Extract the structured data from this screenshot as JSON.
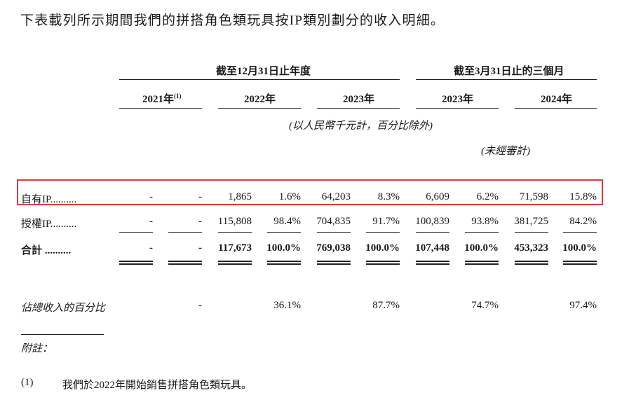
{
  "intro_text": "下表載列所示期間我們的拼搭角色類玩具按IP類別劃分的收入明細。",
  "header": {
    "group_annual": "截至12月31日止年度",
    "group_quarter": "截至3月31日止的三個月",
    "col_2021": "2021年",
    "col_2021_sup": "(1)",
    "col_2022": "2022年",
    "col_2023": "2023年",
    "col_q2023": "2023年",
    "col_q2024": "2024年",
    "unit_note": "(以人民幣千元計，百分比除外)",
    "unaudited_note": "(未經審計)"
  },
  "rows": [
    {
      "label": "自有IP",
      "leader": "..........",
      "values": [
        "-",
        "-",
        "1,865",
        "1.6%",
        "64,203",
        "8.3%",
        "6,609",
        "6.2%",
        "71,598",
        "15.8%"
      ]
    },
    {
      "label": "授權IP",
      "leader": "..........",
      "values": [
        "-",
        "-",
        "115,808",
        "98.4%",
        "704,835",
        "91.7%",
        "100,839",
        "93.8%",
        "381,725",
        "84.2%"
      ]
    },
    {
      "label": "合計",
      "leader": "..........",
      "values": [
        "-",
        "-",
        "117,673",
        "100.0%",
        "769,038",
        "100.0%",
        "107,448",
        "100.0%",
        "453,323",
        "100.0%"
      ]
    }
  ],
  "share_row": {
    "label": "佔總收入的百分比",
    "values": [
      "-",
      "36.1%",
      "87.7%",
      "74.7%",
      "97.4%"
    ]
  },
  "footnote_heading": "附註：",
  "footnote_marker": "(1)",
  "footnote_text": "我們於2022年開始銷售拼搭角色類玩具。",
  "colors": {
    "highlight": "#e0383e",
    "text": "#1a1a1a"
  }
}
